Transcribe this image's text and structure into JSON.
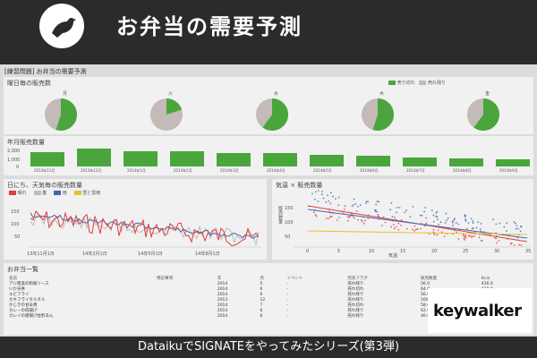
{
  "header": {
    "title": "お弁当の需要予測",
    "logo": "bird-icon"
  },
  "footer": {
    "text": "DataikuでSIGNATEをやってみたシリーズ(第3弾)"
  },
  "dashboard": {
    "title": "[練習問題] お弁当の需要予測",
    "weekday": {
      "title": "曜日毎の販売数",
      "legend": [
        "売り切れ",
        "売れ残り"
      ],
      "days": [
        "月",
        "火",
        "水",
        "木",
        "金"
      ],
      "shares": [
        0.55,
        0.2,
        0.6,
        0.55,
        0.6
      ]
    },
    "monthly": {
      "title": "年月販売数量",
      "yticks": [
        "2,000",
        "1,000",
        "0"
      ],
      "months": [
        "2013年11月",
        "2013年12月",
        "2014年1月",
        "2014年2月",
        "2014年3月",
        "2014年4月",
        "2014年5月",
        "2014年6月",
        "2014年7月",
        "2014年8月",
        "2014年9月"
      ],
      "values": [
        1300,
        1650,
        1400,
        1400,
        1250,
        1250,
        1050,
        1000,
        850,
        750,
        700
      ]
    },
    "daily": {
      "title": "日にち、天気毎の販売数量",
      "legend": [
        "晴れ",
        "曇",
        "雨",
        "雪と雷雨"
      ],
      "yticks": [
        "150",
        "100",
        "50"
      ],
      "xticks": [
        "13年11月1日",
        "14年2月1日",
        "14年5月1日",
        "14年8月1日"
      ]
    },
    "scatter": {
      "title": "気温 × 販売数量",
      "xlabel": "気温",
      "ylabel": "販売数量",
      "xticks": [
        "0",
        "5",
        "10",
        "15",
        "20",
        "25",
        "30",
        "35"
      ],
      "yticks": [
        "150",
        "100",
        "50"
      ]
    },
    "table": {
      "title": "お弁当一覧",
      "headers": [
        "名前",
        "特記事項",
        "年",
        "月",
        "イベント",
        "完売フラグ",
        "販売数量",
        "Kcal"
      ],
      "rows": [
        [
          "アジ南蛮の和風ソース",
          "",
          "2014",
          "5",
          "-",
          "売れ残り",
          "56.0",
          "430.0"
        ],
        [
          "いか天丼",
          "",
          "2014",
          "6",
          "-",
          "売れ切れ",
          "64.0",
          "438.0"
        ],
        [
          "エビフライ",
          "",
          "2014",
          "6",
          "-",
          "売れ残り",
          "56.0",
          "401.0"
        ],
        [
          "カキフライタルタル",
          "",
          "2013",
          "12",
          "-",
          "売れ残り",
          "160.0",
          ""
        ],
        [
          "かじきの甘辛煮",
          "",
          "2014",
          "7",
          "-",
          "売れ切れ",
          "58.0",
          ""
        ],
        [
          "カレーの肉揚げ",
          "",
          "2014",
          "6",
          "-",
          "売れ残り",
          "62.0",
          ""
        ],
        [
          "カレイの唐揚げ甘酢あん",
          "",
          "2014",
          "6",
          "-",
          "売れ残り",
          "46.0",
          ""
        ]
      ]
    }
  },
  "brand": {
    "text": "keywalker"
  },
  "colors": {
    "green": "#4aa63c",
    "grey": "#c4bbb8",
    "red": "#e23b3b",
    "blue": "#3b68b0",
    "yellow": "#e8c22c"
  }
}
